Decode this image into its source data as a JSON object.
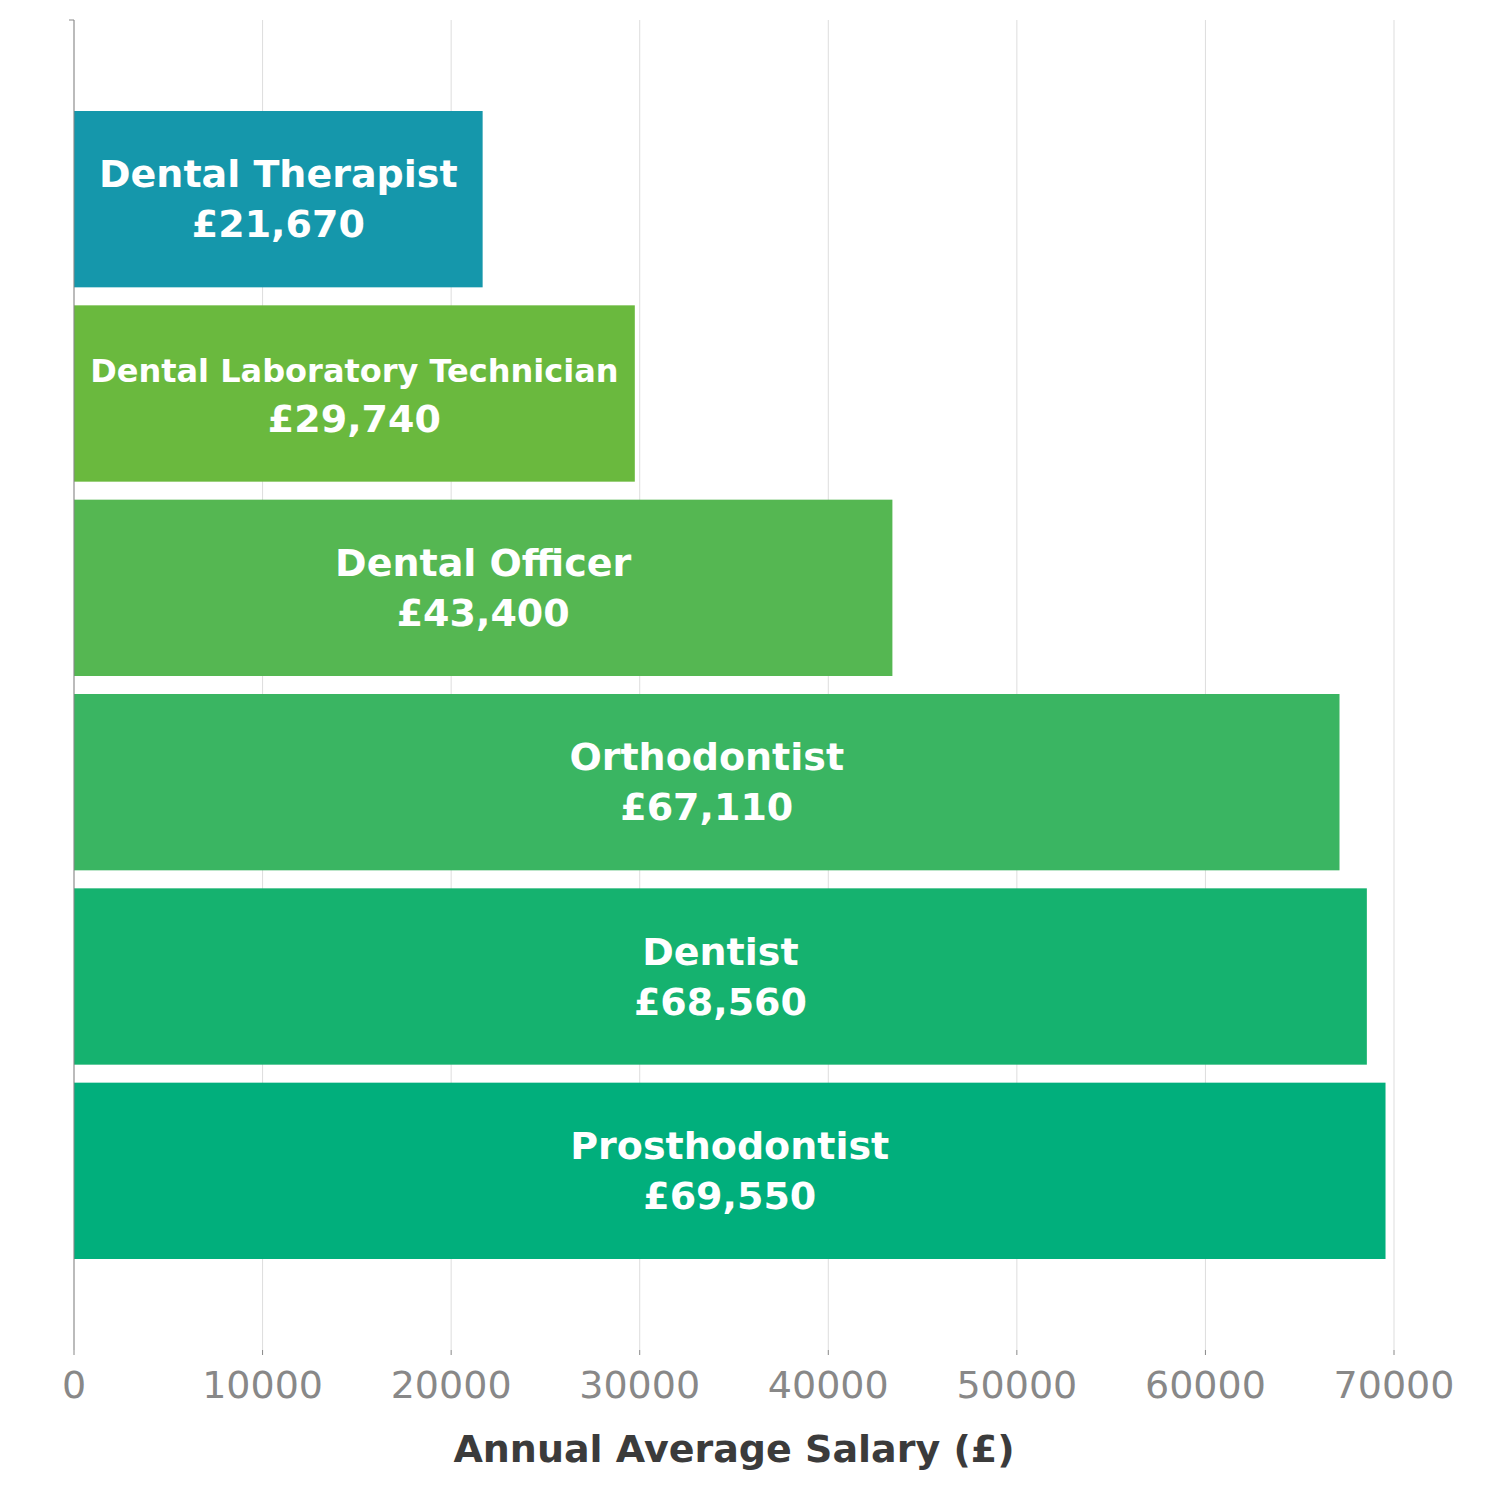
{
  "chart_data": {
    "type": "bar",
    "orientation": "horizontal",
    "x_label": "Annual Average Salary (£)",
    "categories": [
      "Dental Therapist",
      "Dental Laboratory Technician",
      "Dental Officer",
      "Orthodontist",
      "Dentist",
      "Prosthodontist"
    ],
    "values": [
      21670,
      29740,
      43400,
      67110,
      68560,
      69550
    ],
    "value_labels": [
      "£21,670",
      "£29,740",
      "£43,400",
      "£67,110",
      "£68,560",
      "£69,550"
    ],
    "colors": [
      "#1597ab",
      "#6ab93e",
      "#55b752",
      "#3ab562",
      "#15b26f",
      "#01af7c"
    ],
    "xlim": [
      0,
      70000
    ],
    "xticks": [
      0,
      10000,
      20000,
      30000,
      40000,
      50000,
      60000,
      70000
    ],
    "grid": true,
    "data_labels": true
  }
}
